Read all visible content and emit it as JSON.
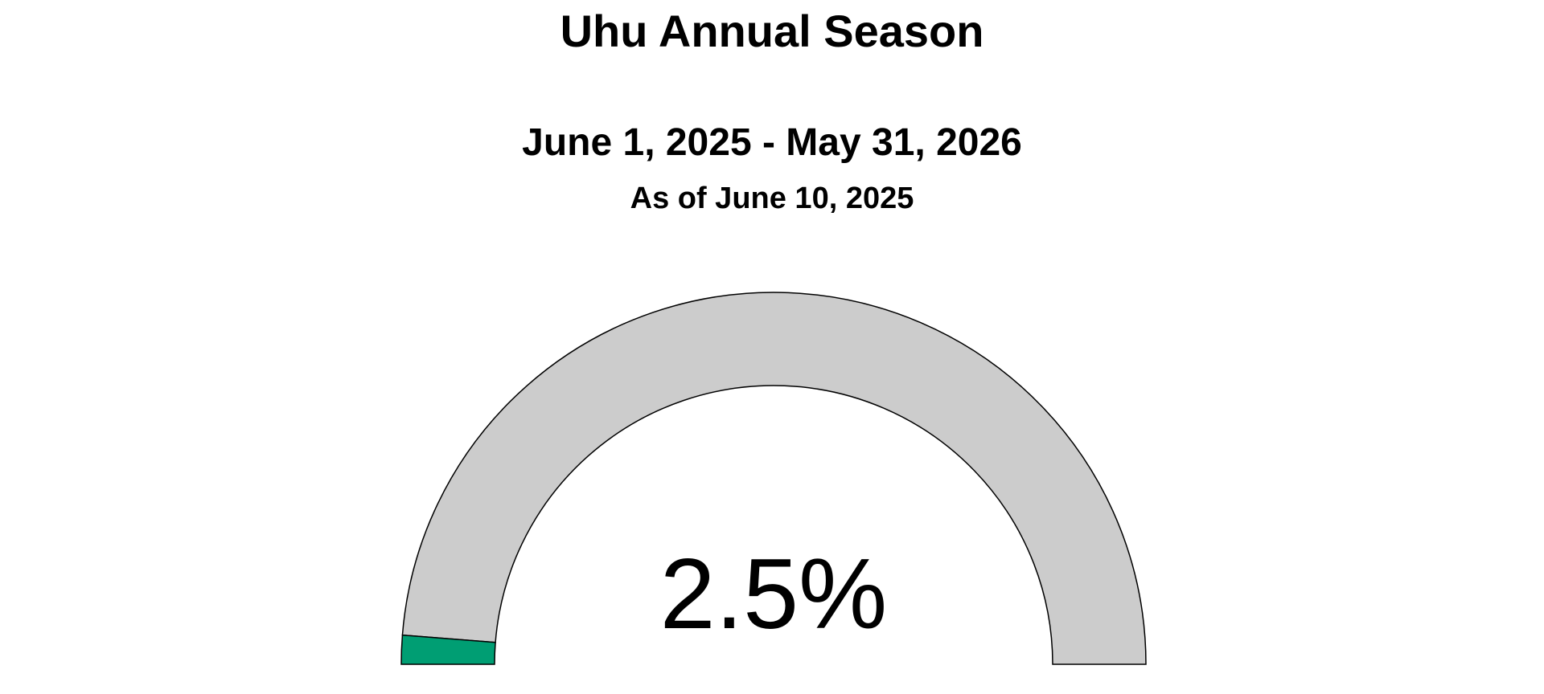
{
  "chart_data": {
    "type": "gauge",
    "title": "Uhu Annual Season",
    "subtitle": "June 1, 2025 - May 31, 2026",
    "caption": "As of June 10, 2025",
    "value": 2.5,
    "min": 0,
    "max": 100,
    "value_label": "2.5%",
    "fill_color": "#009E73",
    "track_color": "#CCCCCC",
    "outline_color": "#000000"
  }
}
